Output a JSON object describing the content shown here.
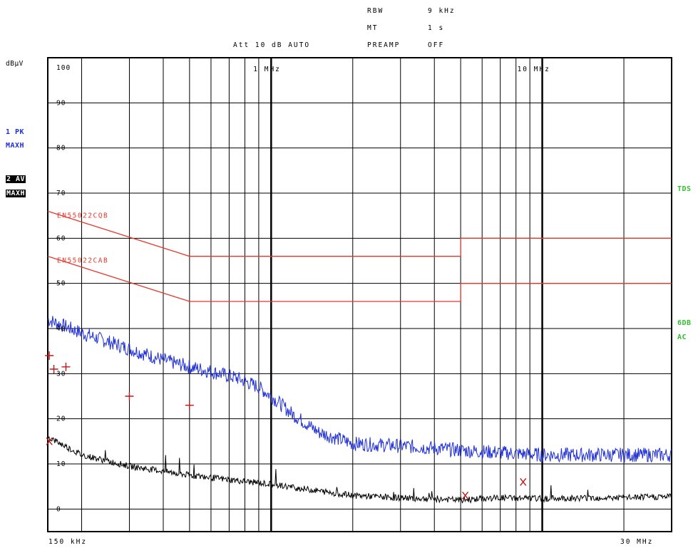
{
  "header": {
    "rbw_label": "RBW",
    "rbw_value": "9 kHz",
    "mt_label": "MT",
    "mt_value": "1 s",
    "att_label": "Att 10 dB AUTO",
    "preamp_label": "PREAMP",
    "preamp_value": "OFF"
  },
  "left_labels": {
    "unit": "dBµV",
    "trace1_line1": "1 PK",
    "trace1_line2": "MAXH",
    "trace2_line1": "2 AV",
    "trace2_line2": "MAXH"
  },
  "right_labels": {
    "tds": "TDS",
    "sixdb": "6DB",
    "ac": "AC"
  },
  "colors": {
    "trace_peak": "#1f2fd8",
    "trace_avg": "#000000",
    "limit": "#e8362a",
    "marker": "#c01818",
    "grid": "#000000",
    "status_green": "#2fc02f"
  },
  "chart_data": {
    "type": "line",
    "xscale": "log",
    "xlim_hz": [
      150000,
      30000000
    ],
    "ylim": [
      0,
      105
    ],
    "ylabel": "dBµV",
    "grid": true,
    "x_tick_labels": [
      "150 kHz",
      "1 MHz",
      "10 MHz",
      "30 MHz"
    ],
    "y_tick_labels": [
      "0",
      "10",
      "20",
      "30",
      "40",
      "50",
      "60",
      "70",
      "80",
      "90",
      "100"
    ],
    "limit_lines": [
      {
        "name": "EN55022CQB",
        "points_hz_db": [
          [
            150000,
            66
          ],
          [
            500000,
            56
          ],
          [
            5000000,
            56
          ],
          [
            5000000,
            60
          ],
          [
            30000000,
            60
          ]
        ]
      },
      {
        "name": "EN55022CAB",
        "points_hz_db": [
          [
            150000,
            56
          ],
          [
            500000,
            46
          ],
          [
            5000000,
            46
          ],
          [
            5000000,
            50
          ],
          [
            30000000,
            50
          ]
        ]
      }
    ],
    "series": [
      {
        "name": "1 PK MAXH",
        "points_hz_db": [
          [
            150000,
            42
          ],
          [
            200000,
            39
          ],
          [
            300000,
            35.5
          ],
          [
            400000,
            33
          ],
          [
            500000,
            31.5
          ],
          [
            600000,
            30.5
          ],
          [
            750000,
            29
          ],
          [
            900000,
            27
          ],
          [
            1000000,
            25
          ],
          [
            1200000,
            21
          ],
          [
            1500000,
            17
          ],
          [
            2000000,
            14.5
          ],
          [
            3000000,
            14
          ],
          [
            4000000,
            13.5
          ],
          [
            5000000,
            13
          ],
          [
            7000000,
            12.5
          ],
          [
            10000000,
            12
          ],
          [
            15000000,
            12
          ],
          [
            20000000,
            12
          ],
          [
            30000000,
            12
          ]
        ]
      },
      {
        "name": "2 AV MAXH",
        "points_hz_db": [
          [
            150000,
            16
          ],
          [
            200000,
            12
          ],
          [
            300000,
            9.5
          ],
          [
            500000,
            7.5
          ],
          [
            700000,
            6.5
          ],
          [
            1000000,
            5.5
          ],
          [
            1500000,
            4
          ],
          [
            2000000,
            3
          ],
          [
            3000000,
            2.5
          ],
          [
            5000000,
            2
          ],
          [
            7000000,
            2.5
          ],
          [
            10000000,
            2.3
          ],
          [
            15000000,
            2.5
          ],
          [
            20000000,
            2.5
          ],
          [
            30000000,
            2.8
          ]
        ]
      }
    ],
    "markers_plus": [
      [
        152000,
        34
      ],
      [
        158000,
        31
      ],
      [
        175000,
        31.5
      ],
      [
        300000,
        25
      ],
      [
        500000,
        23
      ]
    ],
    "markers_x": [
      [
        152000,
        15
      ],
      [
        5200000,
        3
      ],
      [
        8500000,
        6
      ]
    ]
  }
}
